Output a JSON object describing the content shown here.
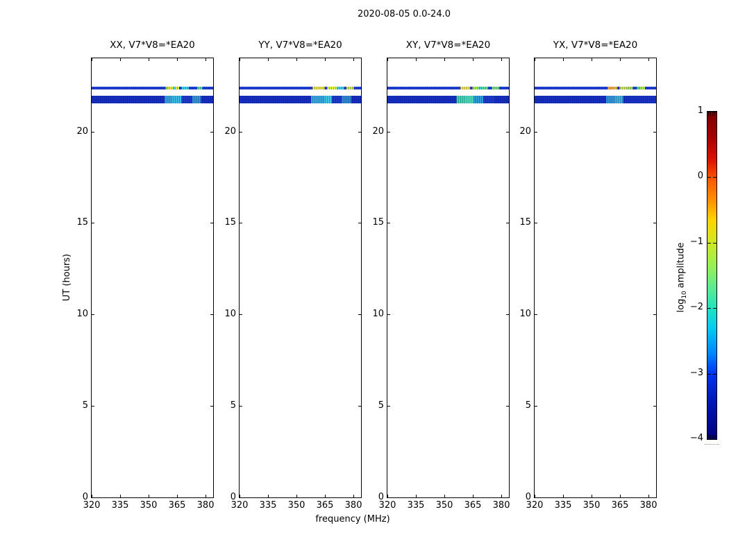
{
  "chart_data": {
    "type": "heatmap",
    "title": "2020-08-05 0.0-24.0",
    "xlabel": "frequency (MHz)",
    "ylabel": "UT (hours)",
    "xlim": [
      320,
      384
    ],
    "ylim": [
      0,
      24
    ],
    "xticks": [
      320,
      335,
      350,
      365,
      380
    ],
    "xtick_labels": [
      "320",
      "335",
      "350",
      "365",
      "380"
    ],
    "yticks": [
      0,
      5,
      10,
      15,
      20
    ],
    "ytick_labels": [
      "0",
      "5",
      "10",
      "15",
      "20"
    ],
    "grid": false,
    "background": "#ffffff",
    "colorbar": {
      "label": "log10 amplitude",
      "label_prefix": "log",
      "label_sub": "10",
      "label_suffix": "amplitude",
      "colormap": "jet",
      "range": [
        -4,
        1
      ],
      "tick_values": [
        1,
        0,
        -1,
        -2,
        -3,
        -4
      ],
      "tick_labels": [
        "1",
        "0",
        "−1",
        "−2",
        "−3",
        "−4"
      ],
      "gradient": [
        [
          0,
          "#7a0000"
        ],
        [
          8,
          "#a80000"
        ],
        [
          15,
          "#dd1400"
        ],
        [
          20,
          "#f85200"
        ],
        [
          27,
          "#ff9000"
        ],
        [
          33,
          "#ffd400"
        ],
        [
          40,
          "#cfe822"
        ],
        [
          47,
          "#9aee56"
        ],
        [
          53,
          "#63ec8c"
        ],
        [
          60,
          "#23e2c0"
        ],
        [
          66,
          "#05ccf0"
        ],
        [
          74,
          "#0084ff"
        ],
        [
          80,
          "#0034f0"
        ],
        [
          88,
          "#0019b8"
        ],
        [
          100,
          "#000080"
        ]
      ]
    },
    "features": [
      {
        "name": "scan-band-upper",
        "ut_hours_range": [
          22.3,
          22.45
        ],
        "freq_range_MHz": [
          320,
          384
        ],
        "description": "thin blue band (log10 amp ~ -3) with yellow/orange/green segments (~ -1 to 0) between ~356 and 380 MHz"
      },
      {
        "name": "scan-band-lower",
        "ut_hours_range": [
          21.55,
          21.95
        ],
        "freq_range_MHz": [
          320,
          384
        ],
        "description": "broad dark-blue band (log10 amp ~ -3) with cyan/green patches (~ -2) between ~358 and 380 MHz"
      }
    ],
    "panels": [
      {
        "id": "xx",
        "title": "XX, V7*V8=*EA20",
        "stripes": [
          {
            "name": "xx-upper",
            "ut": [
              22.3,
              22.45
            ],
            "segments": [
              [
                0,
                61,
                "#1636d2"
              ],
              [
                61,
                63,
                "#9ade3a"
              ],
              [
                63,
                67,
                "#f2e535"
              ],
              [
                67,
                69,
                "#3ecde2"
              ],
              [
                69,
                72,
                "#dbe93a"
              ],
              [
                72,
                74,
                "#1636d2"
              ],
              [
                74,
                80,
                "#38ccdb"
              ],
              [
                80,
                87,
                "#1636d2"
              ],
              [
                87,
                91,
                "#52dd8c"
              ],
              [
                91,
                100,
                "#1636d2"
              ]
            ]
          },
          {
            "name": "xx-lower",
            "ut": [
              21.55,
              21.95
            ],
            "segments": [
              [
                0,
                60,
                "#0a23bb"
              ],
              [
                60,
                66,
                "#2f9fd8"
              ],
              [
                66,
                74,
                "#35b8dd"
              ],
              [
                74,
                83,
                "#1130c4"
              ],
              [
                83,
                90,
                "#2e90d0"
              ],
              [
                90,
                100,
                "#0a23bb"
              ]
            ]
          }
        ]
      },
      {
        "id": "yy",
        "title": "YY, V7*V8=*EA20",
        "stripes": [
          {
            "name": "yy-upper",
            "ut": [
              22.3,
              22.45
            ],
            "segments": [
              [
                0,
                60,
                "#1636d2"
              ],
              [
                60,
                70,
                "#eee433"
              ],
              [
                70,
                72,
                "#1636d2"
              ],
              [
                72,
                80,
                "#dff03a"
              ],
              [
                80,
                86,
                "#3ecde2"
              ],
              [
                86,
                88,
                "#1636d2"
              ],
              [
                88,
                94,
                "#d3e93a"
              ],
              [
                94,
                100,
                "#1636d2"
              ]
            ]
          },
          {
            "name": "yy-lower",
            "ut": [
              21.55,
              21.95
            ],
            "segments": [
              [
                0,
                59,
                "#0a23bb"
              ],
              [
                59,
                70,
                "#2fa8da"
              ],
              [
                70,
                76,
                "#38c4de"
              ],
              [
                76,
                84,
                "#1130c4"
              ],
              [
                84,
                92,
                "#2585cc"
              ],
              [
                92,
                100,
                "#0a23bb"
              ]
            ]
          }
        ]
      },
      {
        "id": "xy",
        "title": "XY, V7*V8=*EA20",
        "stripes": [
          {
            "name": "xy-upper",
            "ut": [
              22.3,
              22.45
            ],
            "segments": [
              [
                0,
                60,
                "#1636d2"
              ],
              [
                60,
                68,
                "#f2e535"
              ],
              [
                68,
                70,
                "#1636d2"
              ],
              [
                70,
                75,
                "#b5e83c"
              ],
              [
                75,
                78,
                "#3ecdc8"
              ],
              [
                78,
                83,
                "#5cd88e"
              ],
              [
                83,
                86,
                "#1636d2"
              ],
              [
                86,
                92,
                "#77dd72"
              ],
              [
                92,
                100,
                "#1636d2"
              ]
            ]
          },
          {
            "name": "xy-lower",
            "ut": [
              21.55,
              21.95
            ],
            "segments": [
              [
                0,
                57,
                "#0a23bb"
              ],
              [
                57,
                64,
                "#33d8a4"
              ],
              [
                64,
                71,
                "#43e0ae"
              ],
              [
                71,
                79,
                "#2796d4"
              ],
              [
                79,
                88,
                "#1130c4"
              ],
              [
                88,
                100,
                "#0a23bb"
              ]
            ]
          }
        ]
      },
      {
        "id": "yx",
        "title": "YX, V7*V8=*EA20",
        "stripes": [
          {
            "name": "yx-upper",
            "ut": [
              22.3,
              22.45
            ],
            "segments": [
              [
                0,
                60,
                "#1636d2"
              ],
              [
                60,
                65,
                "#f2a52c"
              ],
              [
                65,
                68,
                "#f0bc31"
              ],
              [
                68,
                70,
                "#1636d2"
              ],
              [
                70,
                76,
                "#cfe93a"
              ],
              [
                76,
                81,
                "#a3e04e"
              ],
              [
                81,
                84,
                "#1636d2"
              ],
              [
                84,
                87,
                "#55d87c"
              ],
              [
                87,
                91,
                "#bce83e"
              ],
              [
                91,
                100,
                "#1636d2"
              ]
            ]
          },
          {
            "name": "yx-lower",
            "ut": [
              21.55,
              21.95
            ],
            "segments": [
              [
                0,
                59,
                "#0a23bb"
              ],
              [
                59,
                66,
                "#2b90cf"
              ],
              [
                66,
                73,
                "#35aed8"
              ],
              [
                73,
                100,
                "#0d28bf"
              ]
            ]
          }
        ]
      }
    ]
  }
}
